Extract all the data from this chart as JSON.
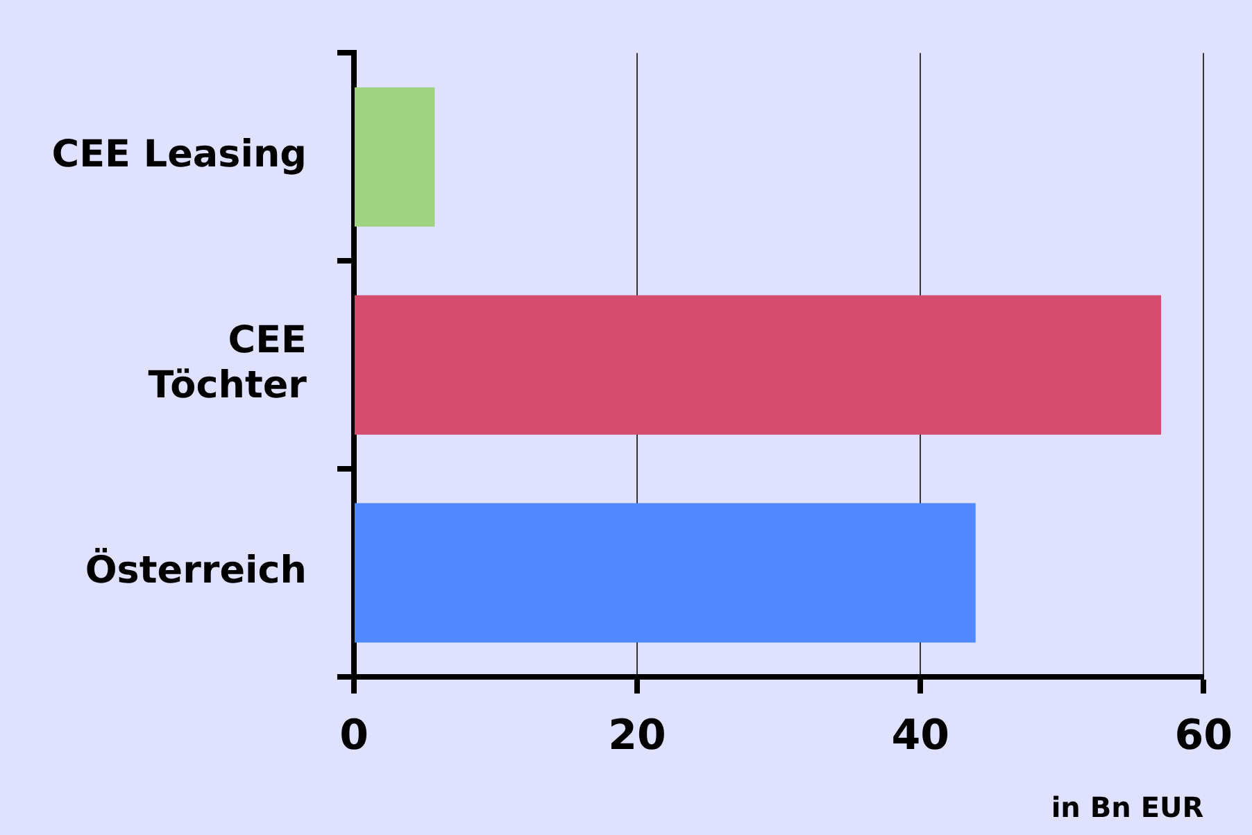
{
  "chart_data": {
    "type": "bar",
    "orientation": "horizontal",
    "categories": [
      "CEE Leasing",
      "CEE\nTöchter",
      "Österreich"
    ],
    "values": [
      5.7,
      57,
      43.9
    ],
    "colors": [
      "#9fd283",
      "#d44d6f",
      "#4f88ff"
    ],
    "xlabel": "in Bn EUR",
    "xlim": [
      0,
      60
    ],
    "xticks": [
      0,
      20,
      40,
      60
    ],
    "grid": "x",
    "legend": false
  }
}
